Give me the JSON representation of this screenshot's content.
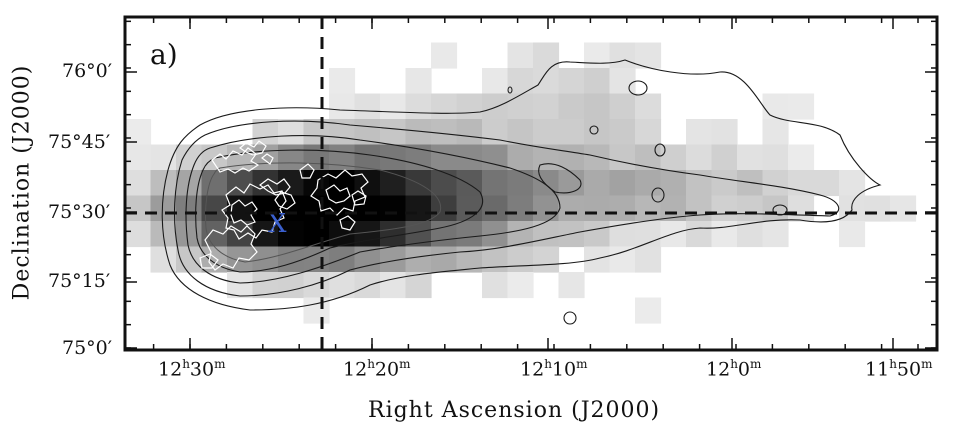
{
  "figure": {
    "panel_label": "a)",
    "marker_label": "X"
  },
  "chart_data": {
    "type": "heatmap",
    "xlabel": "Right Ascension (J2000)",
    "ylabel": "Declination (J2000)",
    "x_ticks": [
      {
        "h": "12",
        "m": "30"
      },
      {
        "h": "12",
        "m": "20"
      },
      {
        "h": "12",
        "m": "10"
      },
      {
        "h": "12",
        "m": "0"
      },
      {
        "h": "11",
        "m": "50"
      }
    ],
    "y_ticks": [
      "76°0′",
      "75°45′",
      "75°30′",
      "75°15′",
      "75°0′"
    ],
    "crosshair": {
      "ra": "12h22.5m",
      "dec": "75°28.5′"
    },
    "colors": {
      "frame": "#111111",
      "contour": "#1a1a1a",
      "optical_contour": "#ffffff",
      "marker": "#3a5fcd"
    },
    "grid": false
  }
}
